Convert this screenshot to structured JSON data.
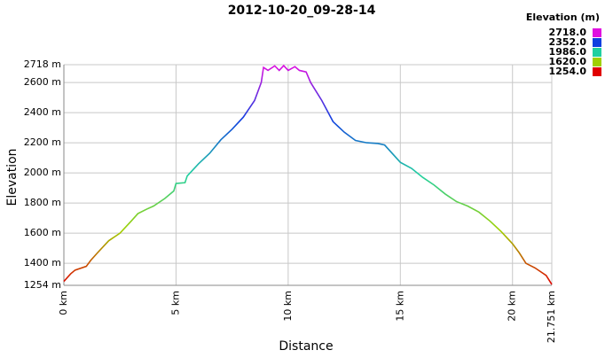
{
  "chart_data": {
    "type": "line",
    "title": "2012-10-20_09-28-14",
    "x_label": "Distance",
    "y_label": "Elevation",
    "x": [
      0,
      0.3,
      0.5,
      1.0,
      1.2,
      1.5,
      2.0,
      2.5,
      3.0,
      3.3,
      3.7,
      4.0,
      4.5,
      4.9,
      5.0,
      5.4,
      5.5,
      6.0,
      6.5,
      7.0,
      7.5,
      8.0,
      8.5,
      8.8,
      8.9,
      9.1,
      9.4,
      9.6,
      9.8,
      10.0,
      10.3,
      10.5,
      10.8,
      11.0,
      11.5,
      12.0,
      12.5,
      13.0,
      13.5,
      14.0,
      14.3,
      15.0,
      15.5,
      16.0,
      16.5,
      17.0,
      17.5,
      18.0,
      18.5,
      19.0,
      19.5,
      20.0,
      20.3,
      20.6,
      21.0,
      21.5,
      21.751
    ],
    "series": [
      {
        "values": [
          1280,
          1330,
          1355,
          1380,
          1420,
          1470,
          1550,
          1600,
          1680,
          1730,
          1760,
          1780,
          1830,
          1880,
          1930,
          1935,
          1980,
          2060,
          2130,
          2220,
          2290,
          2370,
          2480,
          2600,
          2700,
          2680,
          2710,
          2680,
          2712,
          2680,
          2705,
          2680,
          2670,
          2600,
          2480,
          2340,
          2270,
          2215,
          2200,
          2195,
          2185,
          2070,
          2030,
          1970,
          1920,
          1860,
          1810,
          1780,
          1740,
          1680,
          1610,
          1530,
          1470,
          1400,
          1370,
          1320,
          1260
        ]
      }
    ],
    "xlim": [
      0,
      21.751
    ],
    "ylim": [
      1254,
      2718
    ],
    "xticks": [
      {
        "value": 0,
        "label": "0 km"
      },
      {
        "value": 5,
        "label": "5 km"
      },
      {
        "value": 10,
        "label": "10 km"
      },
      {
        "value": 15,
        "label": "15 km"
      },
      {
        "value": 20,
        "label": "20 km"
      },
      {
        "value": 21.751,
        "label": "21.751 km"
      }
    ],
    "yticks": [
      {
        "value": 1254,
        "label": "1254 m"
      },
      {
        "value": 1400,
        "label": "1400 m"
      },
      {
        "value": 1600,
        "label": "1600 m"
      },
      {
        "value": 1800,
        "label": "1800 m"
      },
      {
        "value": 2000,
        "label": "2000 m"
      },
      {
        "value": 2200,
        "label": "2200 m"
      },
      {
        "value": 2400,
        "label": "2400 m"
      },
      {
        "value": 2600,
        "label": "2600 m"
      },
      {
        "value": 2718,
        "label": "2718 m"
      }
    ],
    "grid": true,
    "color_scale": {
      "title": "Elevation (m)",
      "entries": [
        {
          "value": 2718,
          "label": "2718.0",
          "color": "#e010e0"
        },
        {
          "value": 2352,
          "label": "2352.0",
          "color": "#1040e0"
        },
        {
          "value": 1986,
          "label": "1986.0",
          "color": "#20d0a0"
        },
        {
          "value": 1620,
          "label": "1620.0",
          "color": "#a0d000"
        },
        {
          "value": 1254,
          "label": "1254.0",
          "color": "#e00000"
        }
      ]
    }
  }
}
